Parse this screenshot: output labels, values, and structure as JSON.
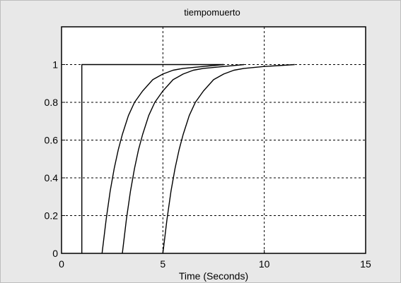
{
  "chart_data": {
    "type": "line",
    "title": "tiempomuerto",
    "xlabel": "Time (Seconds)",
    "ylabel": "",
    "xlim": [
      0,
      15
    ],
    "ylim": [
      0,
      1.2
    ],
    "x_ticks": [
      0,
      5,
      10,
      15
    ],
    "y_ticks": [
      0,
      0.2,
      0.4,
      0.6,
      0.8,
      1
    ],
    "x_tick_labels": [
      "0",
      "5",
      "10",
      "15"
    ],
    "y_tick_labels": [
      "0",
      "0.2",
      "0.4",
      "0.6",
      "0.8",
      "1"
    ],
    "grid": true,
    "colors": {
      "frame": "#e8e8e8",
      "axes_bg": "#ffffff",
      "line": "#000000",
      "grid": "#000000"
    },
    "series": [
      {
        "x": [
          1,
          1,
          8
        ],
        "y": [
          0,
          1,
          1
        ]
      },
      {
        "x": [
          2,
          2.2,
          2.4,
          2.6,
          2.8,
          3,
          3.3,
          3.6,
          4,
          4.5,
          5,
          5.5,
          6,
          7,
          8
        ],
        "y": [
          0,
          0.18,
          0.33,
          0.45,
          0.55,
          0.63,
          0.73,
          0.8,
          0.86,
          0.92,
          0.95,
          0.97,
          0.98,
          0.99,
          1
        ]
      },
      {
        "x": [
          3,
          3.2,
          3.4,
          3.6,
          3.8,
          4,
          4.3,
          4.6,
          5,
          5.5,
          6,
          6.5,
          7,
          8,
          9
        ],
        "y": [
          0,
          0.18,
          0.33,
          0.45,
          0.55,
          0.63,
          0.73,
          0.8,
          0.86,
          0.92,
          0.95,
          0.97,
          0.98,
          0.99,
          1
        ]
      },
      {
        "x": [
          5,
          5.2,
          5.4,
          5.6,
          5.8,
          6,
          6.3,
          6.6,
          7,
          7.5,
          8,
          8.5,
          9,
          10,
          11.5
        ],
        "y": [
          0,
          0.18,
          0.33,
          0.45,
          0.55,
          0.63,
          0.73,
          0.8,
          0.86,
          0.92,
          0.95,
          0.97,
          0.98,
          0.99,
          1
        ]
      }
    ]
  }
}
